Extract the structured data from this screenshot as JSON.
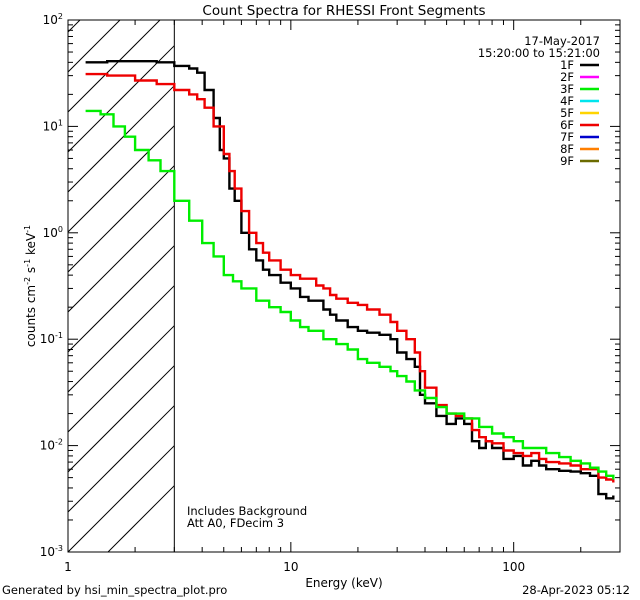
{
  "chart_data": {
    "type": "line",
    "title": "Count Spectra for RHESSI Front Segments",
    "xlabel": "Energy (keV)",
    "ylabel_parts": [
      "counts cm",
      "-2",
      " s",
      "-1",
      " keV",
      "-1"
    ],
    "xscale": "log",
    "yscale": "log",
    "xlim": [
      1,
      300
    ],
    "ylim": [
      0.001,
      100
    ],
    "x_ticks": [
      {
        "value": 10,
        "label": "10"
      },
      {
        "value": 100,
        "label": "100"
      }
    ],
    "y_ticks": [
      {
        "value": 0.001,
        "base": "10",
        "exp": "-3"
      },
      {
        "value": 0.01,
        "base": "10",
        "exp": "-2"
      },
      {
        "value": 0.1,
        "base": "10",
        "exp": "-1"
      },
      {
        "value": 1,
        "base": "10",
        "exp": "0"
      },
      {
        "value": 10,
        "base": "10",
        "exp": "1"
      },
      {
        "value": 100,
        "base": "10",
        "exp": "2"
      }
    ],
    "x_extra_label": {
      "value": 1,
      "label": "1"
    },
    "date": "17-May-2017",
    "time_range": "15:20:00 to 15:21:00",
    "hatched_region": {
      "x_from": 1,
      "x_to": 3
    },
    "legend": [
      {
        "label": "1F",
        "color": "#000000"
      },
      {
        "label": "2F",
        "color": "#ff00ff"
      },
      {
        "label": "3F",
        "color": "#00ee00"
      },
      {
        "label": "4F",
        "color": "#00e5ee"
      },
      {
        "label": "5F",
        "color": "#ffd400"
      },
      {
        "label": "6F",
        "color": "#ee0000"
      },
      {
        "label": "7F",
        "color": "#0000cc"
      },
      {
        "label": "8F",
        "color": "#ff7f00"
      },
      {
        "label": "9F",
        "color": "#6b6b00"
      }
    ],
    "annotation_lines": [
      "Includes Background",
      "Att A0, FDecim 3"
    ],
    "series": [
      {
        "name": "1F",
        "color": "#000000",
        "points": [
          [
            1.2,
            40
          ],
          [
            1.5,
            41
          ],
          [
            2.0,
            41
          ],
          [
            2.5,
            40
          ],
          [
            3.0,
            37
          ],
          [
            3.5,
            35
          ],
          [
            3.8,
            32
          ],
          [
            4.1,
            22
          ],
          [
            4.5,
            12
          ],
          [
            4.8,
            6
          ],
          [
            5.0,
            5
          ],
          [
            5.3,
            2.6
          ],
          [
            5.6,
            2.0
          ],
          [
            6.0,
            1.0
          ],
          [
            6.5,
            0.7
          ],
          [
            7.0,
            0.55
          ],
          [
            7.5,
            0.45
          ],
          [
            8.0,
            0.4
          ],
          [
            9.0,
            0.34
          ],
          [
            10,
            0.3
          ],
          [
            11,
            0.25
          ],
          [
            12,
            0.23
          ],
          [
            14,
            0.19
          ],
          [
            15,
            0.17
          ],
          [
            16,
            0.15
          ],
          [
            18,
            0.13
          ],
          [
            20,
            0.12
          ],
          [
            22,
            0.115
          ],
          [
            25,
            0.11
          ],
          [
            28,
            0.1
          ],
          [
            30,
            0.075
          ],
          [
            33,
            0.065
          ],
          [
            36,
            0.055
          ],
          [
            38,
            0.03
          ],
          [
            40,
            0.025
          ],
          [
            45,
            0.019
          ],
          [
            50,
            0.016
          ],
          [
            55,
            0.018
          ],
          [
            60,
            0.016
          ],
          [
            65,
            0.011
          ],
          [
            70,
            0.0095
          ],
          [
            75,
            0.011
          ],
          [
            80,
            0.0095
          ],
          [
            90,
            0.0075
          ],
          [
            100,
            0.008
          ],
          [
            110,
            0.0065
          ],
          [
            120,
            0.0072
          ],
          [
            130,
            0.0065
          ],
          [
            140,
            0.006
          ],
          [
            160,
            0.0058
          ],
          [
            180,
            0.0057
          ],
          [
            200,
            0.0055
          ],
          [
            220,
            0.0052
          ],
          [
            240,
            0.0035
          ],
          [
            260,
            0.0032
          ],
          [
            280,
            0.0034
          ]
        ]
      },
      {
        "name": "6F",
        "color": "#ee0000",
        "points": [
          [
            1.2,
            31
          ],
          [
            1.5,
            30
          ],
          [
            2.0,
            27
          ],
          [
            2.5,
            25
          ],
          [
            3.0,
            22
          ],
          [
            3.5,
            20
          ],
          [
            3.8,
            18
          ],
          [
            4.1,
            15
          ],
          [
            4.5,
            10
          ],
          [
            5.0,
            5.5
          ],
          [
            5.3,
            3.8
          ],
          [
            5.6,
            2.6
          ],
          [
            6.0,
            1.6
          ],
          [
            6.5,
            1.0
          ],
          [
            7.0,
            0.8
          ],
          [
            7.5,
            0.65
          ],
          [
            8.0,
            0.55
          ],
          [
            9.0,
            0.45
          ],
          [
            10,
            0.4
          ],
          [
            11,
            0.37
          ],
          [
            12,
            0.37
          ],
          [
            13,
            0.32
          ],
          [
            14,
            0.3
          ],
          [
            15,
            0.26
          ],
          [
            16,
            0.24
          ],
          [
            18,
            0.22
          ],
          [
            20,
            0.21
          ],
          [
            22,
            0.19
          ],
          [
            25,
            0.17
          ],
          [
            28,
            0.145
          ],
          [
            30,
            0.12
          ],
          [
            33,
            0.1
          ],
          [
            36,
            0.075
          ],
          [
            38,
            0.05
          ],
          [
            40,
            0.035
          ],
          [
            45,
            0.024
          ],
          [
            50,
            0.02
          ],
          [
            55,
            0.019
          ],
          [
            60,
            0.018
          ],
          [
            65,
            0.014
          ],
          [
            70,
            0.012
          ],
          [
            75,
            0.011
          ],
          [
            80,
            0.0105
          ],
          [
            90,
            0.009
          ],
          [
            100,
            0.0085
          ],
          [
            110,
            0.008
          ],
          [
            120,
            0.0085
          ],
          [
            130,
            0.0075
          ],
          [
            140,
            0.007
          ],
          [
            160,
            0.0068
          ],
          [
            180,
            0.0065
          ],
          [
            200,
            0.006
          ],
          [
            220,
            0.006
          ],
          [
            240,
            0.005
          ],
          [
            260,
            0.0048
          ],
          [
            280,
            0.0045
          ]
        ]
      },
      {
        "name": "3F",
        "color": "#00ee00",
        "points": [
          [
            1.2,
            14
          ],
          [
            1.4,
            13
          ],
          [
            1.6,
            10
          ],
          [
            1.8,
            8
          ],
          [
            2.0,
            6.0
          ],
          [
            2.3,
            4.8
          ],
          [
            2.6,
            3.8
          ],
          [
            3.0,
            2.0
          ],
          [
            3.5,
            1.3
          ],
          [
            4.0,
            0.8
          ],
          [
            4.5,
            0.6
          ],
          [
            5.0,
            0.4
          ],
          [
            5.5,
            0.35
          ],
          [
            6.0,
            0.3
          ],
          [
            7.0,
            0.23
          ],
          [
            8.0,
            0.2
          ],
          [
            9.0,
            0.18
          ],
          [
            10,
            0.15
          ],
          [
            11,
            0.13
          ],
          [
            12,
            0.12
          ],
          [
            14,
            0.1
          ],
          [
            16,
            0.09
          ],
          [
            18,
            0.08
          ],
          [
            20,
            0.065
          ],
          [
            22,
            0.06
          ],
          [
            25,
            0.055
          ],
          [
            28,
            0.05
          ],
          [
            30,
            0.045
          ],
          [
            33,
            0.04
          ],
          [
            36,
            0.033
          ],
          [
            40,
            0.028
          ],
          [
            45,
            0.023
          ],
          [
            50,
            0.02
          ],
          [
            55,
            0.02
          ],
          [
            60,
            0.018
          ],
          [
            70,
            0.015
          ],
          [
            80,
            0.013
          ],
          [
            90,
            0.012
          ],
          [
            100,
            0.011
          ],
          [
            110,
            0.0095
          ],
          [
            120,
            0.0095
          ],
          [
            140,
            0.0085
          ],
          [
            160,
            0.0078
          ],
          [
            180,
            0.0072
          ],
          [
            200,
            0.0068
          ],
          [
            220,
            0.0062
          ],
          [
            240,
            0.0057
          ],
          [
            260,
            0.0052
          ],
          [
            280,
            0.0048
          ]
        ]
      }
    ]
  },
  "footer": {
    "generated_by": "Generated by hsi_min_spectra_plot.pro",
    "timestamp": "28-Apr-2023 05:12"
  }
}
